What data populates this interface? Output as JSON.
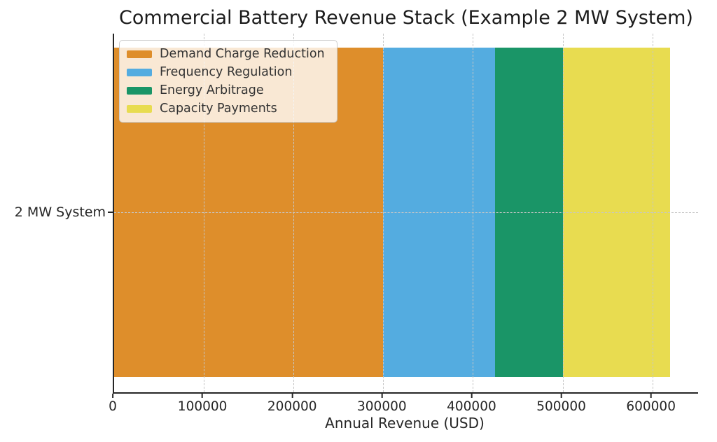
{
  "chart_data": {
    "type": "bar",
    "orientation": "horizontal",
    "stacked": true,
    "title": "Commercial Battery Revenue Stack (Example 2 MW System)",
    "xlabel": "Annual Revenue (USD)",
    "ylabel": "",
    "categories": [
      "2 MW System"
    ],
    "series": [
      {
        "name": "Demand Charge Reduction",
        "values": [
          300000
        ],
        "color": "#DE8E2B"
      },
      {
        "name": "Frequency Regulation",
        "values": [
          125000
        ],
        "color": "#54ACE0"
      },
      {
        "name": "Energy Arbitrage",
        "values": [
          75000
        ],
        "color": "#1A9567"
      },
      {
        "name": "Capacity Payments",
        "values": [
          120000
        ],
        "color": "#E8DC50"
      }
    ],
    "total": 620000,
    "xlim": [
      0,
      651000
    ],
    "xticks": [
      0,
      100000,
      200000,
      300000,
      400000,
      500000,
      600000
    ],
    "grid": "dashed",
    "grid_color": "#c6c6c6",
    "legend_position": "upper left",
    "legend_background": "#f6e8ce",
    "axis_color": "#262626",
    "text_color": "#262626"
  }
}
